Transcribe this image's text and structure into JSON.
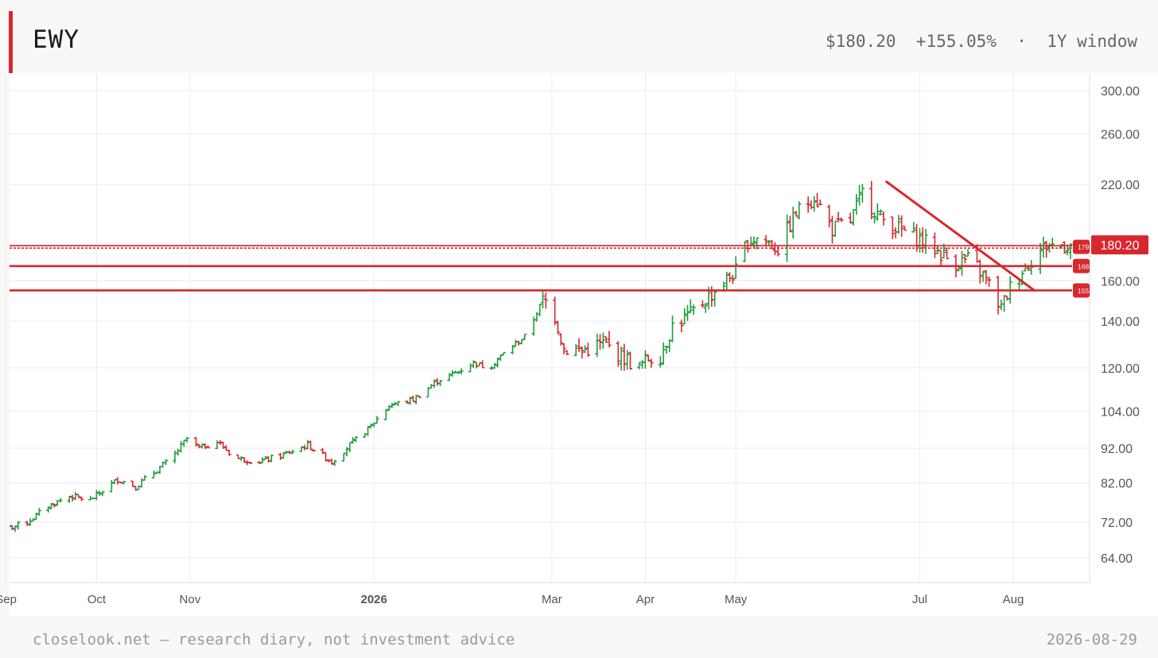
{
  "header": {
    "ticker": "EWY",
    "price": "$180.20",
    "change": "+155.05%",
    "separator": "·",
    "window": "1Y window"
  },
  "footer": {
    "left": "closelook.net — research diary, not investment advice",
    "right": "2026-08-29"
  },
  "colors": {
    "up": "#1f9d3a",
    "down": "#d8272d",
    "accent": "#d8272d",
    "grid": "#ececec"
  },
  "chart_data": {
    "type": "bar",
    "subtype": "ohlc",
    "scale": "log",
    "ylim": [
      59,
      318
    ],
    "y_ticks": [
      "300.00",
      "260.00",
      "220.00",
      "180.00",
      "160.00",
      "140.00",
      "120.00",
      "104.00",
      "92.00",
      "82.00",
      "72.00",
      "64.00"
    ],
    "x_ticks": [
      {
        "label": "Sep",
        "date": "2025-09-01",
        "bold": false
      },
      {
        "label": "Oct",
        "date": "2025-10-01",
        "bold": false
      },
      {
        "label": "Nov",
        "date": "2025-11-01",
        "bold": false
      },
      {
        "label": "2026",
        "date": "2026-01-01",
        "bold": true
      },
      {
        "label": "Mar",
        "date": "2026-03-01",
        "bold": false
      },
      {
        "label": "Apr",
        "date": "2026-04-01",
        "bold": false
      },
      {
        "label": "May",
        "date": "2026-05-01",
        "bold": false
      },
      {
        "label": "Jul",
        "date": "2026-07-01",
        "bold": false
      },
      {
        "label": "Aug",
        "date": "2026-08-01",
        "bold": false
      }
    ],
    "anchors": [
      [
        "2025-09-01",
        70.5
      ],
      [
        "2025-09-08",
        72
      ],
      [
        "2025-09-15",
        76
      ],
      [
        "2025-09-22",
        78.5
      ],
      [
        "2025-09-29",
        77.5
      ],
      [
        "2025-10-03",
        80
      ],
      [
        "2025-10-08",
        83
      ],
      [
        "2025-10-14",
        81
      ],
      [
        "2025-10-20",
        85
      ],
      [
        "2025-10-26",
        89
      ],
      [
        "2025-10-31",
        95
      ],
      [
        "2025-11-04",
        92
      ],
      [
        "2025-11-10",
        94
      ],
      [
        "2025-11-16",
        89
      ],
      [
        "2025-11-24",
        88
      ],
      [
        "2025-12-02",
        90
      ],
      [
        "2025-12-10",
        93
      ],
      [
        "2025-12-18",
        88
      ],
      [
        "2025-12-24",
        93
      ],
      [
        "2025-12-30",
        98
      ],
      [
        "2026-01-06",
        106
      ],
      [
        "2026-01-14",
        108
      ],
      [
        "2026-01-22",
        115
      ],
      [
        "2026-01-28",
        118
      ],
      [
        "2026-02-03",
        122
      ],
      [
        "2026-02-08",
        120
      ],
      [
        "2026-02-14",
        127
      ],
      [
        "2026-02-20",
        133
      ],
      [
        "2026-02-26",
        150
      ],
      [
        "2026-03-01",
        148
      ],
      [
        "2026-03-05",
        128
      ],
      [
        "2026-03-11",
        127
      ],
      [
        "2026-03-18",
        130
      ],
      [
        "2026-03-24",
        125
      ],
      [
        "2026-03-30",
        120
      ],
      [
        "2026-04-02",
        124
      ],
      [
        "2026-04-06",
        125
      ],
      [
        "2026-04-10",
        138
      ],
      [
        "2026-04-16",
        143
      ],
      [
        "2026-04-22",
        152
      ],
      [
        "2026-05-01",
        165
      ],
      [
        "2026-05-05",
        183
      ],
      [
        "2026-05-09",
        185
      ],
      [
        "2026-05-15",
        178
      ],
      [
        "2026-05-21",
        200
      ],
      [
        "2026-05-27",
        212
      ],
      [
        "2026-06-02",
        190
      ],
      [
        "2026-06-08",
        195
      ],
      [
        "2026-06-12",
        214
      ],
      [
        "2026-06-18",
        197
      ],
      [
        "2026-06-24",
        190
      ],
      [
        "2026-06-30",
        185
      ],
      [
        "2026-07-06",
        178
      ],
      [
        "2026-07-12",
        170
      ],
      [
        "2026-07-18",
        172
      ],
      [
        "2026-07-24",
        158
      ],
      [
        "2026-07-28",
        146
      ],
      [
        "2026-08-01",
        160
      ],
      [
        "2026-08-06",
        170
      ],
      [
        "2026-08-12",
        180
      ],
      [
        "2026-08-20",
        180.2
      ]
    ],
    "last_close": 180.2,
    "horizontal_lines": [
      {
        "level": 179,
        "label": "179",
        "style": "double"
      },
      {
        "level": 168,
        "label": "168",
        "style": "solid"
      },
      {
        "level": 155,
        "label": "155",
        "style": "solid"
      }
    ],
    "last_price_label": "180.20",
    "trendlines": [
      {
        "from": [
          "2026-06-20",
          222
        ],
        "to": [
          "2026-08-08",
          155
        ]
      }
    ]
  }
}
